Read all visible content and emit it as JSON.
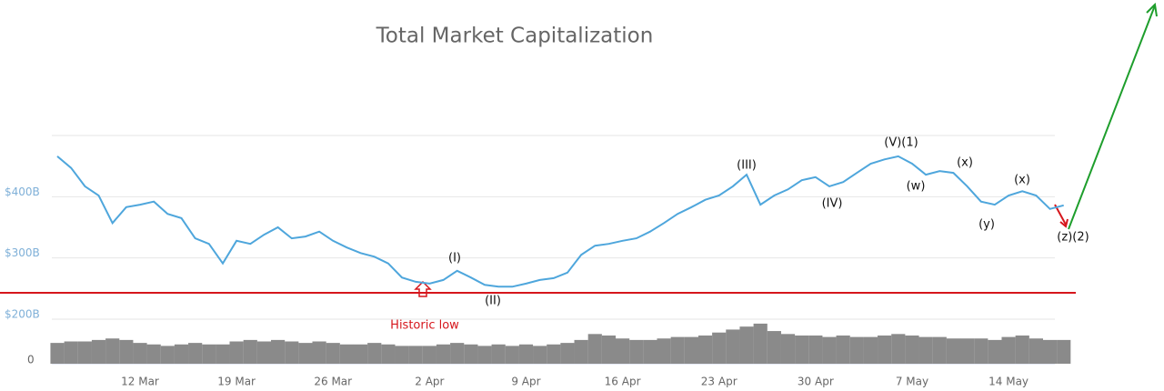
{
  "chart_data": {
    "type": "line",
    "title": "Total Market Capitalization",
    "categories": [
      null,
      null,
      null,
      null,
      null,
      null,
      "12 Mar",
      null,
      null,
      null,
      null,
      null,
      null,
      "19 Mar",
      null,
      null,
      null,
      null,
      null,
      null,
      "26 Mar",
      null,
      null,
      null,
      null,
      null,
      null,
      "2 Apr",
      null,
      null,
      null,
      null,
      null,
      null,
      "9 Apr",
      null,
      null,
      null,
      null,
      null,
      null,
      "16 Apr",
      null,
      null,
      null,
      null,
      null,
      null,
      "23 Apr",
      null,
      null,
      null,
      null,
      null,
      null,
      "30 Apr",
      null,
      null,
      null,
      null,
      null,
      null,
      "7 May",
      null,
      null,
      null,
      null,
      null,
      null,
      "14 May",
      null,
      null,
      null,
      null
    ],
    "values": [
      466,
      447,
      417,
      402,
      357,
      383,
      387,
      392,
      372,
      365,
      332,
      323,
      291,
      328,
      323,
      338,
      350,
      332,
      335,
      343,
      328,
      317,
      308,
      302,
      291,
      268,
      261,
      258,
      264,
      279,
      268,
      256,
      253,
      253,
      258,
      264,
      267,
      276,
      305,
      320,
      323,
      328,
      332,
      343,
      357,
      372,
      383,
      395,
      402,
      417,
      436,
      387,
      402,
      412,
      427,
      432,
      417,
      424,
      439,
      454,
      461,
      466,
      454,
      436,
      442,
      439,
      417,
      392,
      387,
      402,
      409,
      402,
      380,
      386
    ],
    "color": "#4ea6dc",
    "ylim": [
      200,
      500
    ],
    "yticks": [
      {
        "value": 200,
        "label": "$200B"
      },
      {
        "value": 300,
        "label": "$300B"
      },
      {
        "value": 400,
        "label": "$400B"
      }
    ],
    "grid": true,
    "volume": {
      "values": [
        14,
        15,
        15,
        16,
        17,
        16,
        14,
        13,
        12,
        13,
        14,
        13,
        13,
        15,
        16,
        15,
        16,
        15,
        14,
        15,
        14,
        13,
        13,
        14,
        13,
        12,
        12,
        12,
        13,
        14,
        13,
        12,
        13,
        12,
        13,
        12,
        13,
        14,
        16,
        20,
        19,
        17,
        16,
        16,
        17,
        18,
        18,
        19,
        21,
        23,
        25,
        27,
        22,
        20,
        19,
        19,
        18,
        19,
        18,
        18,
        19,
        20,
        19,
        18,
        18,
        17,
        17,
        17,
        16,
        18,
        19,
        17,
        16,
        16
      ],
      "color": "#8a8a8a",
      "ylim": [
        0,
        30
      ],
      "yticks": [
        0
      ]
    },
    "support_line": {
      "value": 243,
      "color": "#d6161c"
    },
    "annotations": [
      "(I)",
      "(II)",
      "(III)",
      "(IV)",
      "(V)(1)",
      "(w)",
      "(x)",
      "(y)",
      "(x)",
      "(z)(2)",
      "Historic low"
    ]
  }
}
